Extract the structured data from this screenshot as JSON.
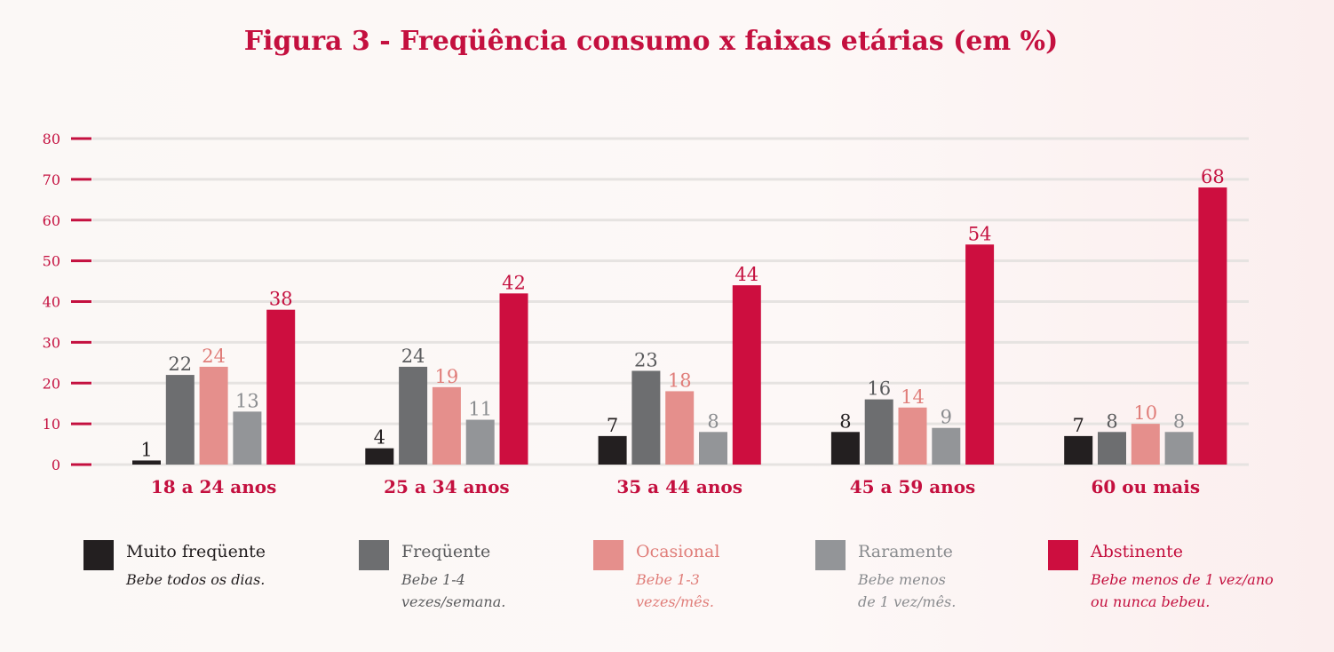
{
  "chart_data": {
    "type": "bar",
    "title": "Figura 3 - Freqüência consumo x faixas etárias (em %)",
    "categories": [
      "18 a 24 anos",
      "25 a 34 anos",
      "35 a 44 anos",
      "45 a 59 anos",
      "60 ou mais"
    ],
    "yticks": [
      0,
      10,
      20,
      30,
      40,
      50,
      60,
      70,
      80
    ],
    "ylim": [
      0,
      80
    ],
    "grid": true,
    "legend_position": "bottom",
    "series": [
      {
        "name": "Muito freqüente",
        "description": "Bebe todos os dias.",
        "color": "#231f20",
        "label_color": "#231f20",
        "values": [
          1,
          4,
          7,
          8,
          7
        ]
      },
      {
        "name": "Freqüente",
        "description": "Bebe 1-4\nvezes/semana.",
        "color": "#6d6e70",
        "label_color": "#5a5b5d",
        "values": [
          22,
          24,
          23,
          16,
          8
        ]
      },
      {
        "name": "Ocasional",
        "description": "Bebe 1-3\nvezes/mês.",
        "color": "#e58f8c",
        "label_color": "#e07d79",
        "values": [
          24,
          19,
          18,
          14,
          10
        ]
      },
      {
        "name": "Raramente",
        "description": "Bebe menos\n de 1 vez/mês.",
        "color": "#939598",
        "label_color": "#8a8c8f",
        "values": [
          13,
          11,
          8,
          9,
          8
        ]
      },
      {
        "name": "Abstinente",
        "description": "Bebe menos de 1 vez/ano\nou nunca bebeu.",
        "color": "#cd0e3f",
        "label_color": "#c4103f",
        "values": [
          38,
          42,
          44,
          54,
          68
        ]
      }
    ]
  },
  "colors": {
    "accent": "#c4103f",
    "grid": "#e6e3e1"
  }
}
